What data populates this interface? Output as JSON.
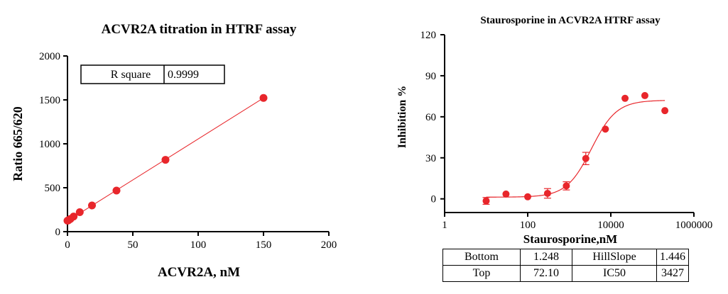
{
  "chart_data": [
    {
      "type": "scatter",
      "title": "ACVR2A titration in HTRF assay",
      "xlabel": "ACVR2A, nM",
      "ylabel": "Ratio 665/620",
      "xlim": [
        0,
        200
      ],
      "ylim": [
        0,
        2000
      ],
      "x_ticks": [
        "0",
        "50",
        "100",
        "150",
        "200"
      ],
      "y_ticks": [
        "0",
        "500",
        "1000",
        "1500",
        "2000"
      ],
      "grid": false,
      "legend": "none",
      "color": "#e8262b",
      "series": [
        {
          "points": [
            {
              "x": 0,
              "y": 125
            },
            {
              "x": 0.6,
              "y": 128
            },
            {
              "x": 1.2,
              "y": 135
            },
            {
              "x": 2.3,
              "y": 145
            },
            {
              "x": 4.7,
              "y": 172
            },
            {
              "x": 9.4,
              "y": 222
            },
            {
              "x": 18.75,
              "y": 298
            },
            {
              "x": 37.5,
              "y": 468
            },
            {
              "x": 75,
              "y": 818
            },
            {
              "x": 150,
              "y": 1522
            }
          ]
        }
      ],
      "fit_line": {
        "from": [
          0,
          122
        ],
        "to": [
          150,
          1522
        ]
      },
      "stats_box": {
        "label": "R square",
        "value": "0.9999"
      }
    },
    {
      "type": "scatter",
      "title": "Staurosporine in ACVR2A HTRF assay",
      "xlabel": "Staurosporine,nM",
      "ylabel": "Inhibition %",
      "x_scale": "log",
      "xlim": [
        1,
        1000000
      ],
      "ylim": [
        -10,
        120
      ],
      "x_ticks": [
        "1",
        "100",
        "10000",
        "1000000"
      ],
      "y_ticks": [
        "0",
        "30",
        "60",
        "90",
        "120"
      ],
      "grid": false,
      "legend": "none",
      "color": "#e8262b",
      "series": [
        {
          "points": [
            {
              "x": 10,
              "y": -1.5,
              "err": 2.5
            },
            {
              "x": 30,
              "y": 3.5,
              "err": 0
            },
            {
              "x": 100,
              "y": 1.5,
              "err": 0
            },
            {
              "x": 300,
              "y": 4,
              "err": 3.5
            },
            {
              "x": 850,
              "y": 9.5,
              "err": 3
            },
            {
              "x": 2500,
              "y": 29.5,
              "err": 4.5
            },
            {
              "x": 7400,
              "y": 51,
              "err": 0
            },
            {
              "x": 22000,
              "y": 73.5,
              "err": 0
            },
            {
              "x": 66000,
              "y": 75.5,
              "err": 0
            },
            {
              "x": 200000,
              "y": 64.5,
              "err": 0
            }
          ]
        }
      ],
      "fit": {
        "bottom": 1.248,
        "top": 72.1,
        "hillslope": 1.446,
        "ic50": 3427,
        "x_from": 10,
        "x_to": 200000
      },
      "stats_table": [
        [
          "Bottom",
          "1.248",
          "HillSlope",
          "1.446"
        ],
        [
          "Top",
          "72.10",
          "IC50",
          "3427"
        ]
      ]
    }
  ]
}
